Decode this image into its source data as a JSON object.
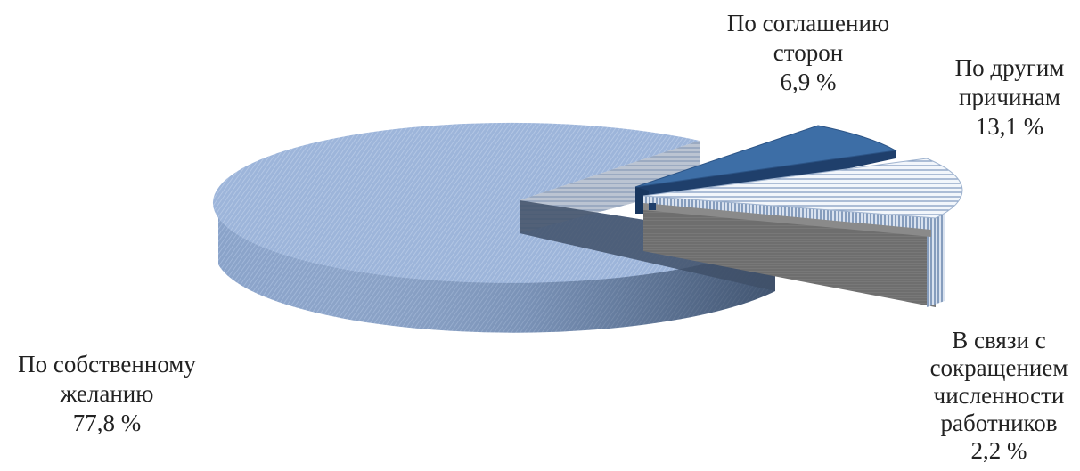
{
  "chart_data": {
    "type": "pie",
    "style": "3d-exploded",
    "slices": [
      {
        "label_lines": [
          "По собственному",
          "желанию"
        ],
        "value": 77.8,
        "value_text": "77,8 %",
        "color": "#9ab3d9"
      },
      {
        "label_lines": [
          "По соглашению",
          "сторон"
        ],
        "value": 6.9,
        "value_text": "6,9 %",
        "color": "#3d6ea6"
      },
      {
        "label_lines": [
          "По другим",
          "причинам"
        ],
        "value": 13.1,
        "value_text": "13,1 %",
        "color": "#e6eef8"
      },
      {
        "label_lines": [
          "В связи с",
          "сокращением",
          "численности",
          "работников"
        ],
        "value": 2.2,
        "value_text": "2,2 %",
        "color": "#6f6f6f"
      }
    ]
  }
}
